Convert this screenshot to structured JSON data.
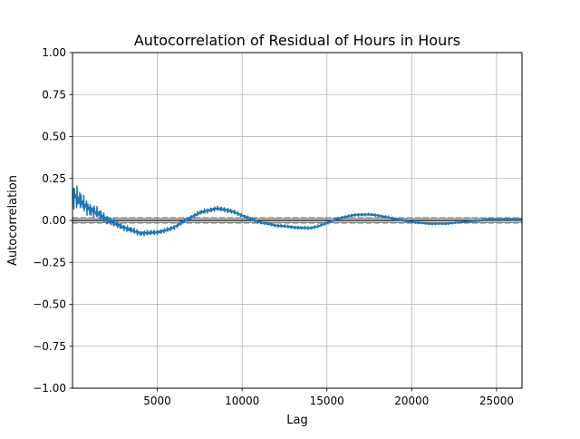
{
  "chart_data": {
    "type": "line",
    "title": "Autocorrelation of Residual of Hours in Hours",
    "xlabel": "Lag",
    "ylabel": "Autocorrelation",
    "xlim": [
      1,
      26500
    ],
    "ylim": [
      -1.0,
      1.0
    ],
    "grid": true,
    "x_ticks": [
      5000,
      10000,
      15000,
      20000,
      25000
    ],
    "x_tick_labels": [
      "5000",
      "10000",
      "15000",
      "20000",
      "25000"
    ],
    "y_ticks": [
      1.0,
      0.75,
      0.5,
      0.25,
      0.0,
      -0.25,
      -0.5,
      -0.75,
      -1.0
    ],
    "y_tick_labels": [
      "1.00",
      "0.75",
      "0.50",
      "0.25",
      "0.00",
      "−0.25",
      "−0.50",
      "−0.75",
      "−1.00"
    ],
    "reference_lines": {
      "zero": 0.0,
      "ci_95": 0.012,
      "ci_99": 0.016
    },
    "series": [
      {
        "color": "#1f77b4",
        "x": [
          1,
          300,
          600,
          1000,
          1500,
          2000,
          2500,
          3000,
          3500,
          4000,
          4500,
          5000,
          5500,
          6000,
          6500,
          7000,
          7500,
          8000,
          8500,
          9000,
          9500,
          10000,
          10500,
          11000,
          11500,
          12000,
          12500,
          13000,
          13500,
          14000,
          14500,
          15000,
          15500,
          16000,
          16500,
          17000,
          17500,
          18000,
          18500,
          19000,
          19500,
          20000,
          20500,
          21000,
          21500,
          22000,
          22500,
          23000,
          23500,
          24000,
          24500,
          25000,
          25500,
          26000,
          26500
        ],
        "values": [
          0.16,
          0.13,
          0.1,
          0.07,
          0.04,
          0.01,
          -0.02,
          -0.04,
          -0.06,
          -0.075,
          -0.075,
          -0.07,
          -0.06,
          -0.04,
          -0.01,
          0.02,
          0.045,
          0.06,
          0.07,
          0.065,
          0.05,
          0.03,
          0.01,
          -0.01,
          -0.02,
          -0.03,
          -0.035,
          -0.04,
          -0.045,
          -0.045,
          -0.035,
          -0.015,
          0.005,
          0.02,
          0.03,
          0.035,
          0.035,
          0.03,
          0.02,
          0.01,
          0.0,
          -0.01,
          -0.015,
          -0.02,
          -0.02,
          -0.02,
          -0.015,
          -0.01,
          -0.005,
          0.0,
          0.005,
          0.005,
          0.005,
          0.005,
          0.005
        ],
        "amplitude": [
          0.09,
          0.08,
          0.06,
          0.05,
          0.04,
          0.03,
          0.025,
          0.02,
          0.02,
          0.018,
          0.016,
          0.015,
          0.015,
          0.015,
          0.015,
          0.015,
          0.015,
          0.015,
          0.015,
          0.015,
          0.014,
          0.012,
          0.011,
          0.01,
          0.01,
          0.01,
          0.01,
          0.01,
          0.01,
          0.01,
          0.009,
          0.009,
          0.009,
          0.009,
          0.009,
          0.009,
          0.009,
          0.008,
          0.008,
          0.008,
          0.007,
          0.007,
          0.007,
          0.006,
          0.006,
          0.006,
          0.006,
          0.006,
          0.006,
          0.006,
          0.006,
          0.006,
          0.006,
          0.006,
          0.006
        ]
      }
    ]
  }
}
